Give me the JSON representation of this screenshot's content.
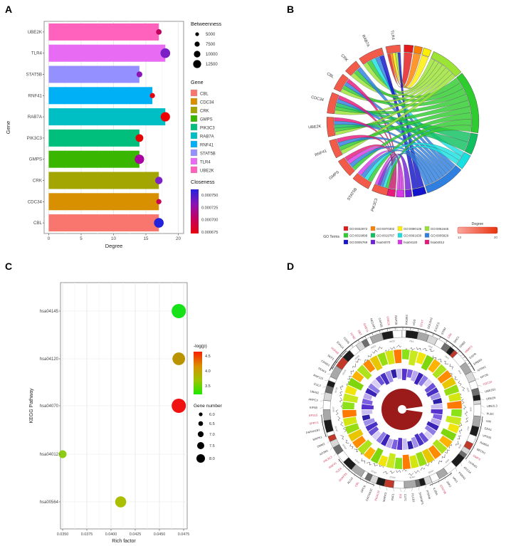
{
  "figure": {
    "background": "#ffffff",
    "panels": [
      {
        "id": "A",
        "label": "A"
      },
      {
        "id": "B",
        "label": "B"
      },
      {
        "id": "C",
        "label": "C"
      },
      {
        "id": "D",
        "label": "D"
      }
    ]
  },
  "chart_data": [
    {
      "panel": "A",
      "type": "bar",
      "orientation": "horizontal",
      "xlabel": "Degree",
      "ylabel": "Gene",
      "xlim": [
        0,
        20
      ],
      "xticks": [
        0,
        5,
        10,
        15,
        20
      ],
      "grid": true,
      "rows_top_to_bottom": [
        {
          "gene": "UBE2K",
          "degree": 17,
          "bar_color": "#FF62BC",
          "betweenness": 6000,
          "closeness_color": "#C3005C"
        },
        {
          "gene": "TLR4",
          "degree": 18,
          "bar_color": "#E76BF3",
          "betweenness": 12500,
          "closeness_color": "#7A1FC6"
        },
        {
          "gene": "STAT5B",
          "degree": 14,
          "bar_color": "#9590FF",
          "betweenness": 6500,
          "closeness_color": "#8A14B4"
        },
        {
          "gene": "RNF41",
          "degree": 16,
          "bar_color": "#00B0F6",
          "betweenness": 5500,
          "closeness_color": "#E8000D"
        },
        {
          "gene": "RAB7A",
          "degree": 18,
          "bar_color": "#00BFC4",
          "betweenness": 12000,
          "closeness_color": "#EF0000"
        },
        {
          "gene": "PIK3C3",
          "degree": 14,
          "bar_color": "#00BF7D",
          "betweenness": 9500,
          "closeness_color": "#E90000"
        },
        {
          "gene": "GMPS",
          "degree": 14,
          "bar_color": "#39B600",
          "betweenness": 12000,
          "closeness_color": "#AA00A0"
        },
        {
          "gene": "CRK",
          "degree": 17,
          "bar_color": "#A3A500",
          "betweenness": 9000,
          "closeness_color": "#7E22C8"
        },
        {
          "gene": "CDC34",
          "degree": 17,
          "bar_color": "#D89000",
          "betweenness": 5500,
          "closeness_color": "#C90052"
        },
        {
          "gene": "CBL",
          "degree": 17,
          "bar_color": "#F8766D",
          "betweenness": 12500,
          "closeness_color": "#2323DC"
        }
      ],
      "legend_betweenness": {
        "title": "Betweenness",
        "sizes": [
          "5000",
          "7500",
          "10000",
          "12500"
        ]
      },
      "legend_gene": {
        "title": "Gene",
        "items": [
          {
            "label": "CBL",
            "color": "#F8766D"
          },
          {
            "label": "CDC34",
            "color": "#D89000"
          },
          {
            "label": "CRK",
            "color": "#A3A500"
          },
          {
            "label": "GMPS",
            "color": "#39B600"
          },
          {
            "label": "PIK3C3",
            "color": "#00BF7D"
          },
          {
            "label": "RAB7A",
            "color": "#00BFC4"
          },
          {
            "label": "RNF41",
            "color": "#00B0F6"
          },
          {
            "label": "STAT5B",
            "color": "#9590FF"
          },
          {
            "label": "TLR4",
            "color": "#E76BF3"
          },
          {
            "label": "UBE2K",
            "color": "#FF62BC"
          }
        ]
      },
      "legend_closeness": {
        "title": "Closeness",
        "ticks": [
          "0.000750",
          "0.000725",
          "0.000700",
          "0.000675"
        ],
        "gradient": [
          "#2323DC",
          "#8A14B4",
          "#C3005C",
          "#E8000D"
        ]
      }
    },
    {
      "panel": "B",
      "type": "chord",
      "gene_arc_color": "#F25B4A",
      "genes": [
        {
          "label": "TLR4",
          "arc": [
            -13,
            -2
          ]
        },
        {
          "label": "RAB7A",
          "arc": [
            -35,
            -16
          ]
        },
        {
          "label": "CRK",
          "arc": [
            -49,
            -38
          ]
        },
        {
          "label": "CBL",
          "arc": [
            -65,
            -52
          ]
        },
        {
          "label": "CDC34",
          "arc": [
            -84,
            -68
          ]
        },
        {
          "label": "UBE2K",
          "arc": [
            -102,
            -87
          ]
        },
        {
          "label": "RNF41",
          "arc": [
            -119,
            -105
          ]
        },
        {
          "label": "GMPS",
          "arc": [
            -136,
            -122
          ]
        },
        {
          "label": "STAT5B",
          "arc": [
            -153,
            -139
          ]
        },
        {
          "label": "PIK3C3",
          "arc": [
            -168,
            -156
          ]
        }
      ],
      "terms": [
        {
          "label": "GO:0032872",
          "color": "#E31A1C",
          "arc": [
            1,
            8
          ]
        },
        {
          "label": "GO:0070302",
          "color": "#FF8000",
          "arc": [
            9,
            15
          ]
        },
        {
          "label": "GO:0090136",
          "color": "#FFEE00",
          "arc": [
            16,
            22
          ]
        },
        {
          "label": "GO:0061645",
          "color": "#9BE335",
          "arc": [
            24,
            50
          ]
        },
        {
          "label": "GO:0019899",
          "color": "#2ECC2E",
          "arc": [
            51,
            99
          ]
        },
        {
          "label": "GO:0019787",
          "color": "#10C060",
          "arc": [
            100,
            116
          ]
        },
        {
          "label": "GO:0061630",
          "color": "#18E0E0",
          "arc": [
            117,
            129
          ]
        },
        {
          "label": "GO:0005829",
          "color": "#2E7FE0",
          "arc": [
            130,
            161
          ]
        },
        {
          "label": "GO:0005769",
          "color": "#1414CC",
          "arc": [
            162,
            172
          ]
        },
        {
          "label": "hsa04070",
          "color": "#7020D8",
          "arc": [
            173,
            178
          ]
        },
        {
          "label": "hsa04120",
          "color": "#D838E8",
          "arc": [
            179,
            185
          ]
        },
        {
          "label": "hsa04012",
          "color": "#E8187C",
          "arc": [
            186,
            192
          ]
        }
      ],
      "links": [
        {
          "gene": "TLR4",
          "term_indices": [
            0,
            1,
            2,
            3,
            8
          ]
        },
        {
          "gene": "RAB7A",
          "term_indices": [
            3,
            4,
            6,
            7,
            8
          ]
        },
        {
          "gene": "CRK",
          "term_indices": [
            3,
            4,
            7
          ]
        },
        {
          "gene": "CBL",
          "term_indices": [
            3,
            4,
            7,
            11
          ]
        },
        {
          "gene": "CDC34",
          "term_indices": [
            3,
            4,
            5,
            7,
            11
          ]
        },
        {
          "gene": "UBE2K",
          "term_indices": [
            3,
            4,
            5,
            7,
            11
          ]
        },
        {
          "gene": "RNF41",
          "term_indices": [
            3,
            4,
            7,
            11
          ]
        },
        {
          "gene": "GMPS",
          "term_indices": [
            4,
            7,
            10,
            11
          ]
        },
        {
          "gene": "STAT5B",
          "term_indices": [
            4,
            6,
            7,
            10
          ]
        },
        {
          "gene": "PIK3C3",
          "term_indices": [
            4,
            6,
            7,
            9,
            10
          ]
        }
      ],
      "legend": {
        "go_terms_label": "GO Terms",
        "degree_title": "Degree",
        "degree_min": "13",
        "degree_max": "20",
        "degree_gradient": [
          "#FBA79F",
          "#E8330D"
        ]
      }
    },
    {
      "panel": "C",
      "type": "scatter",
      "xlabel": "Rich factor",
      "ylabel": "KEGG Pathway",
      "xlim": [
        0.035,
        0.0475
      ],
      "xticks": [
        "0.0350",
        "0.0375",
        "0.0400",
        "0.0425",
        "0.0450",
        "0.0475"
      ],
      "grid": true,
      "points_top_to_bottom": [
        {
          "pathway": "hsa04145",
          "rich_factor": 0.047,
          "gene_number": 8.0,
          "neg_log_p": 3.2,
          "color": "#17E117"
        },
        {
          "pathway": "hsa04120",
          "rich_factor": 0.047,
          "gene_number": 7.5,
          "neg_log_p": 3.9,
          "color": "#BA9400"
        },
        {
          "pathway": "hsa04070",
          "rich_factor": 0.047,
          "gene_number": 8.0,
          "neg_log_p": 4.5,
          "color": "#F01111"
        },
        {
          "pathway": "hsa04012",
          "rich_factor": 0.035,
          "gene_number": 6.0,
          "neg_log_p": 3.5,
          "color": "#8CCD14"
        },
        {
          "pathway": "hsa00564",
          "rich_factor": 0.041,
          "gene_number": 7.0,
          "neg_log_p": 3.5,
          "color": "#ABBE00"
        }
      ],
      "legend_p": {
        "title": "-log(p)",
        "ticks": [
          "4.5",
          "4.0",
          "3.5"
        ],
        "gradient": [
          "#FA1E00",
          "#D99000",
          "#9DC400",
          "#1EE800"
        ]
      },
      "legend_n": {
        "title": "Gene number",
        "sizes": [
          "6.0",
          "6.5",
          "7.0",
          "7.5",
          "8.0"
        ]
      }
    },
    {
      "panel": "D",
      "type": "circos",
      "gene_labels": [
        "KIF5B",
        "ARPC3",
        "UBA52",
        "CUL3",
        "RNF115",
        "TRAF3",
        "CAND1",
        "SKP1",
        "HSPA8",
        "EVA1A",
        "CDH5",
        "NT5E",
        "DBT",
        "RAB7A",
        "NECAP2",
        "CAPZB",
        "UBE2K",
        "RAP1B",
        "PIK3R3",
        "HGS",
        "STX7",
        "GOLGA2",
        "EXOC5",
        "STAM",
        "CRK",
        "SHC1",
        "GRB2",
        "VAMP3",
        "EGFR",
        "ERBB3",
        "NTRK1",
        "MYO6",
        "CDC34",
        "UBE2D1",
        "UBE2N",
        "UBE2L3",
        "PLEC",
        "VIM",
        "EEA1",
        "VPS35",
        "RAB5A",
        "BECN1",
        "GMPS",
        "UVRAG",
        "ATG14",
        "PSMA1",
        "VAV1",
        "JAK2",
        "STAT5B",
        "IL2RA",
        "PTPN6",
        "SH3KBP1",
        "PLCB1",
        "CLTC",
        "ID4",
        "PAF1",
        "MAPK3",
        "PICALM",
        "CACNA1C",
        "GPC6",
        "CBL",
        "ALG3",
        "SNAP25",
        "TLR4",
        "RNF41",
        "PIK3C3",
        "AP2M1",
        "DNM2",
        "MAPK1",
        "PAFAH1B1",
        "SPRY2",
        "EPS15"
      ],
      "red_label_indices": [
        8,
        11,
        12,
        13,
        16,
        20,
        24,
        27,
        32,
        42,
        48,
        54,
        57,
        60,
        62,
        63,
        64,
        65,
        70,
        71
      ],
      "red_label_color": "#D04060",
      "chromosome_labels": [
        "chr1",
        "chr2",
        "chr3",
        "chr4",
        "chr5",
        "chr6",
        "chr7",
        "chr8",
        "chr9",
        "chr10",
        "chr11",
        "chr12",
        "chr13",
        "chr14",
        "chr15",
        "chr16",
        "chr17",
        "chr18",
        "chr19",
        "chr20",
        "chr21",
        "chr22"
      ],
      "ideogram_pattern": "wkglwdkrwglwdklwgkwrldkwgwlkdgwrkldwgkwdlrwkgwldkwgrkwldwgkw",
      "ideogram_palette": {
        "w": "#ffffff",
        "k": "#1c1c1c",
        "d": "#6e6e6e",
        "g": "#a8a8a8",
        "l": "#d8d8d8",
        "r": "#c0392b"
      },
      "ring_outer": {
        "segments": 44,
        "colors_cycle": [
          "#8CE219",
          "#C9E81E",
          "#F2E50C",
          "#7FD60C",
          "#FFB300",
          "#AEE21C",
          "#FF8C00",
          "#E8C700",
          "#97DD12",
          "#D4E60F",
          "#FF7A00"
        ]
      },
      "ring_inner": {
        "segments": 44,
        "colors_cycle": [
          "#5533CC",
          "#7B5FE0",
          "#B9A6EC",
          "#3A22B8",
          "#8F7BE8",
          "#D9CFF5",
          "#6A4FD8",
          "#4930C4",
          "#9F8FE8",
          "#2E1FA8",
          "#C9BCF0"
        ]
      },
      "center": {
        "color": "#9B1B1B",
        "wedge_deg": [
          82,
          98
        ],
        "hub_color": "#ffffff"
      }
    }
  ]
}
